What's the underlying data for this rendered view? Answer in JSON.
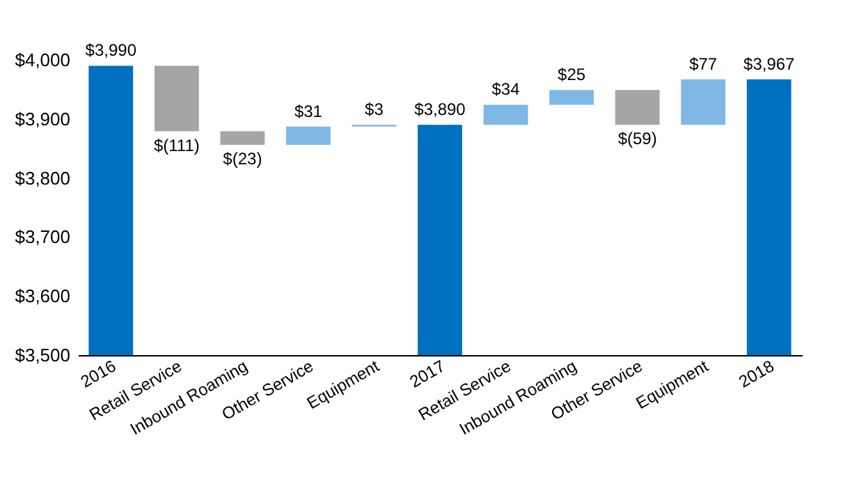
{
  "chart_data": {
    "type": "bar",
    "categories": [
      "2016",
      "Retail Service",
      "Inbound Roaming",
      "Other Service",
      "Equipment",
      "2017",
      "Retail Service",
      "Inbound Roaming",
      "Other Service",
      "Equipment",
      "2018"
    ],
    "values": [
      3990,
      -111,
      -23,
      31,
      3,
      3890,
      34,
      25,
      -59,
      77,
      3967
    ],
    "base": [
      null,
      3990,
      3879,
      3856,
      3887,
      null,
      3890,
      3924,
      3949,
      3890,
      null
    ],
    "colors": [
      "#0070c0",
      "#a5a5a5",
      "#a5a5a5",
      "#7fb8e4",
      "#7fb8e4",
      "#0070c0",
      "#7fb8e4",
      "#7fb8e4",
      "#a5a5a5",
      "#7fb8e4",
      "#0070c0"
    ],
    "value_labels": [
      "$3,990",
      "$(111)",
      "$(23)",
      "$31",
      "$3",
      "$3,890",
      "$34",
      "$25",
      "$(59)",
      "$77",
      "$3,967"
    ],
    "ylim": [
      3500,
      4000
    ],
    "yticks": [
      {
        "value": 3500,
        "label": "$3,500"
      },
      {
        "value": 3600,
        "label": "$3,600"
      },
      {
        "value": 3700,
        "label": "$3,700"
      },
      {
        "value": 3800,
        "label": "$3,800"
      },
      {
        "value": 3900,
        "label": "$3,900"
      },
      {
        "value": 4000,
        "label": "$4,000"
      }
    ],
    "grid": false
  }
}
